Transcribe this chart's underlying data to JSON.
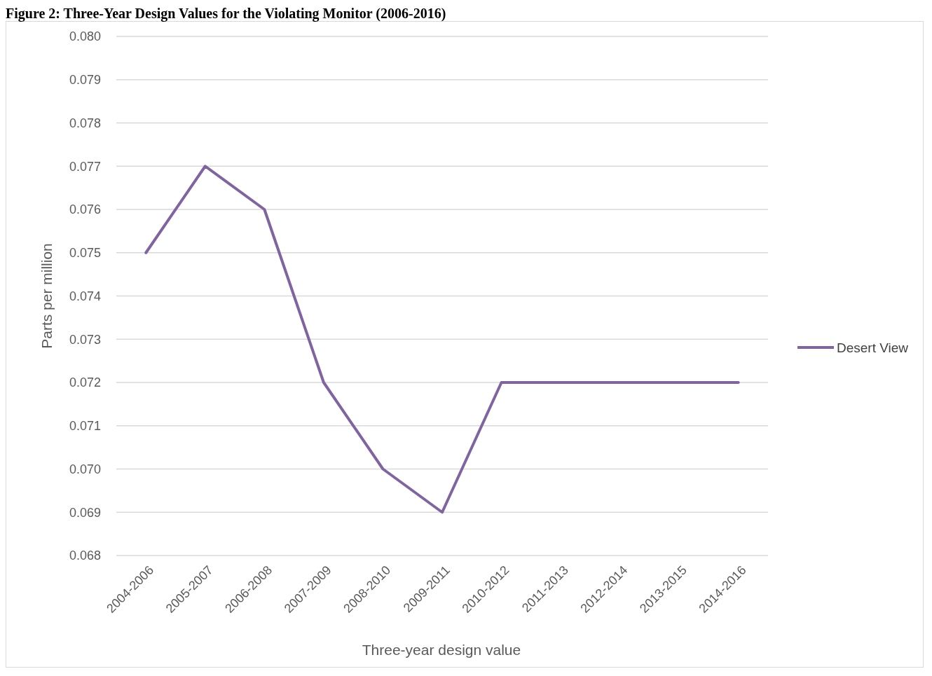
{
  "chart_data": {
    "type": "line",
    "title": "Figure 2: Three-Year Design Values for the Violating Monitor (2006-2016)",
    "xlabel": "Three-year design value",
    "ylabel": "Parts per million",
    "categories": [
      "2004-2006",
      "2005-2007",
      "2006-2008",
      "2007-2009",
      "2008-2010",
      "2009-2011",
      "2010-2012",
      "2011-2013",
      "2012-2014",
      "2013-2015",
      "2014-2016"
    ],
    "series": [
      {
        "name": "Desert View",
        "color": "#8064a2",
        "values": [
          0.075,
          0.077,
          0.076,
          0.072,
          0.07,
          0.069,
          0.072,
          0.072,
          0.072,
          0.072,
          0.072
        ]
      }
    ],
    "ylim": [
      0.068,
      0.08
    ],
    "yticks": [
      {
        "value": 0.068,
        "label": "0.068"
      },
      {
        "value": 0.069,
        "label": "0.069"
      },
      {
        "value": 0.07,
        "label": "0.070"
      },
      {
        "value": 0.071,
        "label": "0.071"
      },
      {
        "value": 0.072,
        "label": "0.072"
      },
      {
        "value": 0.073,
        "label": "0.073"
      },
      {
        "value": 0.074,
        "label": "0.074"
      },
      {
        "value": 0.075,
        "label": "0.075"
      },
      {
        "value": 0.076,
        "label": "0.076"
      },
      {
        "value": 0.077,
        "label": "0.077"
      },
      {
        "value": 0.078,
        "label": "0.078"
      },
      {
        "value": 0.079,
        "label": "0.079"
      },
      {
        "value": 0.08,
        "label": "0.080"
      }
    ],
    "grid": "y",
    "legend": "right",
    "marker": "none",
    "line_style": "solid"
  }
}
